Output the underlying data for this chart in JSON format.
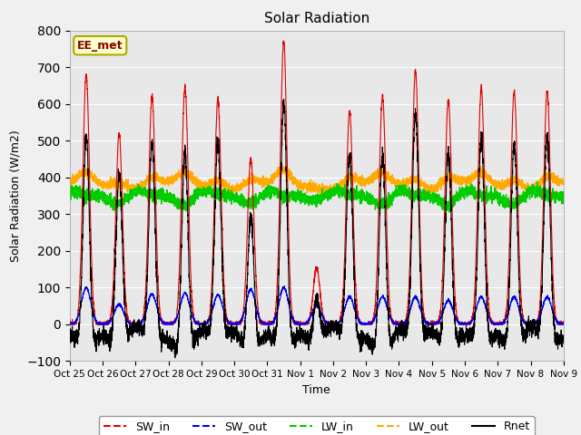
{
  "title": "Solar Radiation",
  "xlabel": "Time",
  "ylabel": "Solar Radiation (W/m2)",
  "ylim": [
    -100,
    800
  ],
  "annotation": "EE_met",
  "background_color": "#e8e8e8",
  "figure_color": "#f0f0f0",
  "legend": [
    "SW_in",
    "SW_out",
    "LW_in",
    "LW_out",
    "Rnet"
  ],
  "colors": {
    "SW_in": "#dd0000",
    "SW_out": "#0000ee",
    "LW_in": "#00cc00",
    "LW_out": "#ffaa00",
    "Rnet": "#000000"
  },
  "n_days": 15,
  "tick_labels": [
    "Oct 25",
    "Oct 26",
    "Oct 27",
    "Oct 28",
    "Oct 29",
    "Oct 30",
    "Oct 31",
    "Nov 1",
    "Nov 2",
    "Nov 3",
    "Nov 4",
    "Nov 5",
    "Nov 6",
    "Nov 7",
    "Nov 8",
    "Nov 9"
  ],
  "sw_in_peaks": [
    680,
    520,
    620,
    645,
    610,
    450,
    770,
    155,
    580,
    620,
    690,
    610,
    640,
    635,
    635
  ],
  "sw_out_peaks": [
    100,
    55,
    82,
    85,
    80,
    95,
    100,
    50,
    75,
    75,
    75,
    65,
    75,
    75,
    75
  ],
  "lw_in_base": 355,
  "lw_out_base": 375,
  "rnet_night": -55,
  "pts_per_day": 288
}
